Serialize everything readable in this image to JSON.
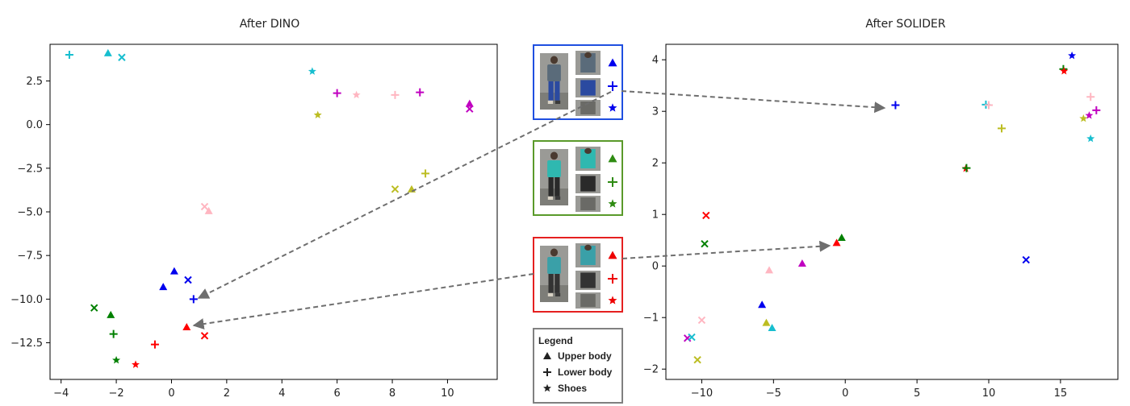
{
  "chart_data": [
    {
      "type": "scatter",
      "title": "After DINO",
      "xlabel": "",
      "ylabel": "",
      "xlim": [
        -4.4,
        11.8
      ],
      "ylim": [
        -14.6,
        4.6
      ],
      "xticks": [
        -4,
        -2,
        0,
        2,
        4,
        6,
        8,
        10
      ],
      "yticks": [
        2.5,
        0.0,
        -2.5,
        -5.0,
        -7.5,
        -10.0,
        -12.5
      ],
      "xtick_labels": [
        "−4",
        "−2",
        "0",
        "2",
        "4",
        "6",
        "8",
        "10"
      ],
      "ytick_labels": [
        "2.5",
        "0.0",
        "−2.5",
        "−5.0",
        "−7.5",
        "−10.0",
        "−12.5"
      ],
      "grid": false,
      "points": [
        {
          "x": -3.7,
          "y": 4.0,
          "marker": "plus",
          "color": "#17becf"
        },
        {
          "x": -2.3,
          "y": 4.1,
          "marker": "triangle",
          "color": "#17becf"
        },
        {
          "x": -1.8,
          "y": 3.85,
          "marker": "x",
          "color": "#17becf"
        },
        {
          "x": 5.1,
          "y": 3.05,
          "marker": "star",
          "color": "#17becf"
        },
        {
          "x": 6.0,
          "y": 1.8,
          "marker": "plus",
          "color": "#c000c0"
        },
        {
          "x": 6.7,
          "y": 1.7,
          "marker": "star",
          "color": "#ffb6c1"
        },
        {
          "x": 8.1,
          "y": 1.7,
          "marker": "plus",
          "color": "#ffb6c1"
        },
        {
          "x": 9.0,
          "y": 1.85,
          "marker": "plus",
          "color": "#c000c0"
        },
        {
          "x": 10.8,
          "y": 1.2,
          "marker": "triangle",
          "color": "#c000c0"
        },
        {
          "x": 10.8,
          "y": 0.9,
          "marker": "x",
          "color": "#c000c0"
        },
        {
          "x": 5.3,
          "y": 0.55,
          "marker": "star",
          "color": "#bcbd22"
        },
        {
          "x": 9.2,
          "y": -2.8,
          "marker": "plus",
          "color": "#bcbd22"
        },
        {
          "x": 8.1,
          "y": -3.7,
          "marker": "x",
          "color": "#bcbd22"
        },
        {
          "x": 8.7,
          "y": -3.7,
          "marker": "triangle",
          "color": "#bcbd22"
        },
        {
          "x": 1.2,
          "y": -4.7,
          "marker": "x",
          "color": "#ffb6c1"
        },
        {
          "x": 1.35,
          "y": -4.95,
          "marker": "triangle",
          "color": "#ffb6c1"
        },
        {
          "x": 0.1,
          "y": -8.4,
          "marker": "triangle",
          "color": "#0000ee"
        },
        {
          "x": 0.6,
          "y": -8.9,
          "marker": "x",
          "color": "#0000ee"
        },
        {
          "x": -0.3,
          "y": -9.3,
          "marker": "triangle",
          "color": "#0000ee"
        },
        {
          "x": 0.8,
          "y": -10.0,
          "marker": "plus",
          "color": "#0000ee"
        },
        {
          "x": -2.8,
          "y": -10.5,
          "marker": "x",
          "color": "#008000"
        },
        {
          "x": -2.2,
          "y": -10.9,
          "marker": "triangle",
          "color": "#008000"
        },
        {
          "x": -2.1,
          "y": -12.0,
          "marker": "plus",
          "color": "#008000"
        },
        {
          "x": -2.0,
          "y": -13.5,
          "marker": "star",
          "color": "#008000"
        },
        {
          "x": 0.55,
          "y": -11.6,
          "marker": "triangle",
          "color": "#ff0000"
        },
        {
          "x": 1.2,
          "y": -12.1,
          "marker": "x",
          "color": "#ff0000"
        },
        {
          "x": -0.6,
          "y": -12.6,
          "marker": "plus",
          "color": "#ff0000"
        },
        {
          "x": -1.3,
          "y": -13.75,
          "marker": "star",
          "color": "#ff0000"
        }
      ]
    },
    {
      "type": "scatter",
      "title": "After SOLIDER",
      "xlabel": "",
      "ylabel": "",
      "xlim": [
        -12.5,
        19.0
      ],
      "ylim": [
        -2.2,
        4.3
      ],
      "xticks": [
        -10,
        -5,
        0,
        5,
        10,
        15
      ],
      "yticks": [
        4,
        3,
        2,
        1,
        0,
        -1,
        -2
      ],
      "xtick_labels": [
        "−10",
        "−5",
        "0",
        "5",
        "10",
        "15"
      ],
      "ytick_labels": [
        "4",
        "3",
        "2",
        "1",
        "0",
        "−1",
        "−2"
      ],
      "grid": false,
      "points": [
        {
          "x": 3.5,
          "y": 3.12,
          "marker": "plus",
          "color": "#0000ee"
        },
        {
          "x": 15.8,
          "y": 4.08,
          "marker": "star",
          "color": "#0000ee"
        },
        {
          "x": 15.2,
          "y": 3.82,
          "marker": "plus",
          "color": "#008000"
        },
        {
          "x": 15.25,
          "y": 3.78,
          "marker": "star",
          "color": "#ff0000"
        },
        {
          "x": 9.8,
          "y": 3.13,
          "marker": "plus",
          "color": "#17becf"
        },
        {
          "x": 10.0,
          "y": 3.12,
          "marker": "plus",
          "color": "#ffb6c1"
        },
        {
          "x": 17.1,
          "y": 3.28,
          "marker": "plus",
          "color": "#ffb6c1"
        },
        {
          "x": 17.5,
          "y": 3.02,
          "marker": "plus",
          "color": "#c000c0"
        },
        {
          "x": 17.0,
          "y": 2.92,
          "marker": "star",
          "color": "#c000c0"
        },
        {
          "x": 16.6,
          "y": 2.86,
          "marker": "star",
          "color": "#bcbd22"
        },
        {
          "x": 10.9,
          "y": 2.67,
          "marker": "plus",
          "color": "#bcbd22"
        },
        {
          "x": 17.1,
          "y": 2.47,
          "marker": "star",
          "color": "#17becf"
        },
        {
          "x": 8.4,
          "y": 1.89,
          "marker": "star",
          "color": "#ff0000"
        },
        {
          "x": 8.45,
          "y": 1.9,
          "marker": "plus",
          "color": "#008000"
        },
        {
          "x": -9.7,
          "y": 0.98,
          "marker": "x",
          "color": "#ff0000"
        },
        {
          "x": -9.8,
          "y": 0.43,
          "marker": "x",
          "color": "#008000"
        },
        {
          "x": -0.25,
          "y": 0.55,
          "marker": "triangle",
          "color": "#008000"
        },
        {
          "x": -0.6,
          "y": 0.45,
          "marker": "triangle",
          "color": "#ff0000"
        },
        {
          "x": 12.6,
          "y": 0.12,
          "marker": "x",
          "color": "#0000ee"
        },
        {
          "x": -3.0,
          "y": 0.05,
          "marker": "triangle",
          "color": "#c000c0"
        },
        {
          "x": -5.3,
          "y": -0.08,
          "marker": "triangle",
          "color": "#ffb6c1"
        },
        {
          "x": -5.8,
          "y": -0.75,
          "marker": "triangle",
          "color": "#0000ee"
        },
        {
          "x": -10.0,
          "y": -1.05,
          "marker": "x",
          "color": "#ffb6c1"
        },
        {
          "x": -5.5,
          "y": -1.1,
          "marker": "triangle",
          "color": "#bcbd22"
        },
        {
          "x": -5.1,
          "y": -1.2,
          "marker": "triangle",
          "color": "#17becf"
        },
        {
          "x": -11.0,
          "y": -1.4,
          "marker": "x",
          "color": "#c000c0"
        },
        {
          "x": -10.7,
          "y": -1.38,
          "marker": "x",
          "color": "#17becf"
        },
        {
          "x": -10.3,
          "y": -1.82,
          "marker": "x",
          "color": "#bcbd22"
        }
      ]
    }
  ],
  "legend": {
    "title": "Legend",
    "items": [
      {
        "label": "Upper body",
        "marker": "triangle"
      },
      {
        "label": "Lower body",
        "marker": "plus"
      },
      {
        "label": "Shoes",
        "marker": "star"
      }
    ]
  },
  "samples": [
    {
      "name": "blue-person",
      "border_color": "#1f4fe0",
      "marker_color": "#0000ee",
      "shirt_color": "#5a6b7a",
      "pants_color": "#2b4aa0"
    },
    {
      "name": "green-person",
      "border_color": "#5a9a2a",
      "marker_color": "#2e8b12",
      "shirt_color": "#2fb8b0",
      "pants_color": "#2a2a2a"
    },
    {
      "name": "red-person",
      "border_color": "#e52020",
      "marker_color": "#ee0000",
      "shirt_color": "#3aa0a8",
      "pants_color": "#333333"
    }
  ],
  "arrow_color": "#6e6e6e"
}
